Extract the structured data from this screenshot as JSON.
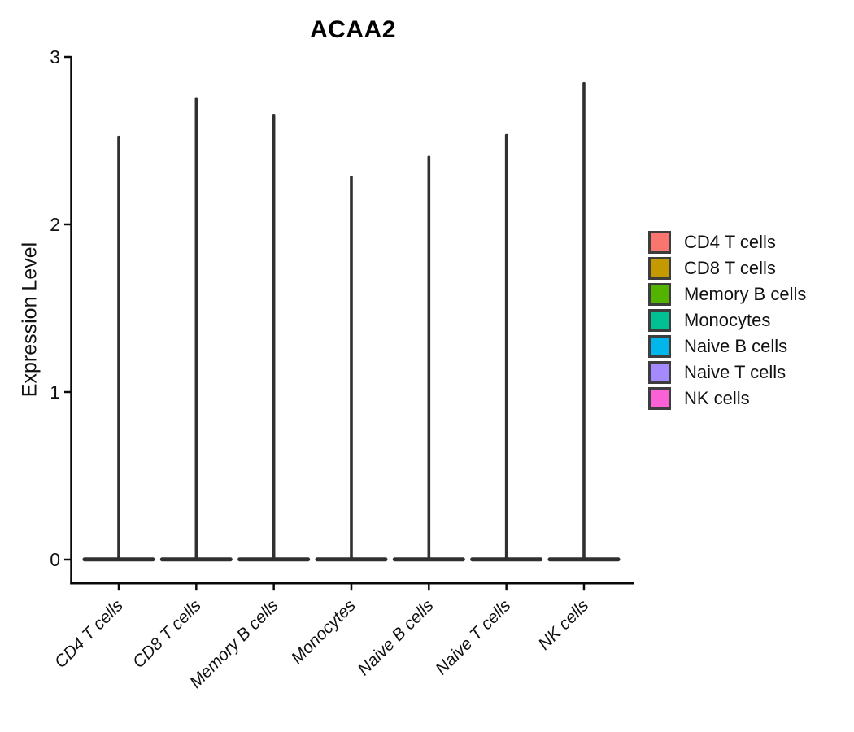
{
  "chart_data": {
    "type": "violin",
    "title": "ACAA2",
    "ylabel": "Expression Level",
    "xlabel": "",
    "ylim": [
      0,
      3
    ],
    "y_ticks": [
      0,
      1,
      2,
      3
    ],
    "grid": false,
    "legend_position": "right",
    "categories": [
      "CD4 T cells",
      "CD8 T cells",
      "Memory B cells",
      "Monocytes",
      "Naive B cells",
      "Naive T cells",
      "NK cells"
    ],
    "series": [
      {
        "name": "CD4 T cells",
        "color": "#F8766D",
        "min_expression": 0,
        "max_expression": 2.53
      },
      {
        "name": "CD8 T cells",
        "color": "#C49A00",
        "min_expression": 0,
        "max_expression": 2.76
      },
      {
        "name": "Memory B cells",
        "color": "#53B400",
        "min_expression": 0,
        "max_expression": 2.66
      },
      {
        "name": "Monocytes",
        "color": "#00C094",
        "min_expression": 0,
        "max_expression": 2.29
      },
      {
        "name": "Naive B cells",
        "color": "#00B6EB",
        "min_expression": 0,
        "max_expression": 2.41
      },
      {
        "name": "Naive T cells",
        "color": "#A58AFF",
        "min_expression": 0,
        "max_expression": 2.54
      },
      {
        "name": "NK cells",
        "color": "#FB61D7",
        "min_expression": 0,
        "max_expression": 2.85
      }
    ],
    "violin_style": "thin spike: density mass concentrated at 0 (flat wide base), rare cells up to max_expression"
  },
  "colors": {
    "violin_stroke": "#303030",
    "axis": "#0a0a0a",
    "text": "#111111",
    "legend_swatch_border": "#3d3d3d",
    "background": "#ffffff"
  }
}
